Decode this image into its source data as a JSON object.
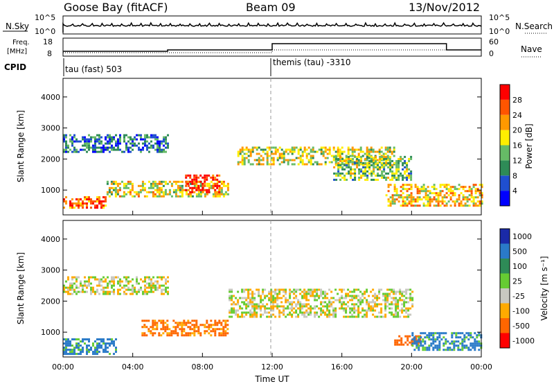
{
  "header": {
    "station": "Goose Bay (fitACF)",
    "beam": "Beam 09",
    "date": "13/Nov/2012"
  },
  "strips": {
    "nsky_label": "N.Sky",
    "nsearch_label": "N.Search",
    "nsky_ticks": [
      "10^5",
      "10^0"
    ],
    "nsky_right_ticks": [
      "10^5",
      "10^0"
    ],
    "freq_label": "Freq.",
    "freq_unit": "[MHz]",
    "freq_ticks": [
      "18",
      "8"
    ],
    "nave_label": "Nave",
    "nave_ticks": [
      "60",
      "0"
    ],
    "cpid_label": "CPID",
    "cpid_segments": [
      {
        "label": "tau (fast) 503",
        "start_hour": 0
      },
      {
        "label": "themis (tau) -3310",
        "start_hour": 12
      }
    ]
  },
  "chart_data": [
    {
      "type": "heatmap",
      "title": "",
      "xlabel": "",
      "ylabel": "Slant Range [km]",
      "xlim": [
        0,
        24
      ],
      "ylim": [
        200,
        4600
      ],
      "yticks": [
        1000,
        2000,
        3000,
        4000
      ],
      "colorbar": {
        "label": "Power [dB]",
        "ticks": [
          4,
          8,
          12,
          16,
          20,
          24,
          28
        ],
        "range": [
          0,
          32
        ],
        "colors": [
          "#0000ff",
          "#1f4fd0",
          "#2e8b57",
          "#66bb66",
          "#ffee00",
          "#ff9900",
          "#ff5500",
          "#ff0000"
        ]
      },
      "echo_bands": [
        {
          "hours": [
            0.0,
            2.5
          ],
          "range_km": [
            400,
            800
          ],
          "level": 26
        },
        {
          "hours": [
            0.0,
            6.0
          ],
          "range_km": [
            2200,
            2800
          ],
          "level": 8
        },
        {
          "hours": [
            2.5,
            9.5
          ],
          "range_km": [
            800,
            1300
          ],
          "level": 18
        },
        {
          "hours": [
            7.0,
            9.0
          ],
          "range_km": [
            900,
            1500
          ],
          "level": 28
        },
        {
          "hours": [
            10.0,
            19.0
          ],
          "range_km": [
            1800,
            2400
          ],
          "level": 17
        },
        {
          "hours": [
            15.5,
            20.0
          ],
          "range_km": [
            1300,
            2100
          ],
          "level": 14
        },
        {
          "hours": [
            18.5,
            24.0
          ],
          "range_km": [
            500,
            1200
          ],
          "level": 20
        }
      ]
    },
    {
      "type": "heatmap",
      "title": "",
      "xlabel": "Time UT",
      "ylabel": "Slant Range [km]",
      "xlim": [
        0,
        24
      ],
      "ylim": [
        200,
        4600
      ],
      "xticks": [
        "00:00",
        "04:00",
        "08:00",
        "12:00",
        "16:00",
        "20:00",
        "00:00"
      ],
      "yticks": [
        1000,
        2000,
        3000,
        4000
      ],
      "colorbar": {
        "label": "Velocity [m s⁻¹]",
        "ticks": [
          1000,
          500,
          100,
          25,
          -25,
          -100,
          -500,
          -1000
        ],
        "colors": [
          "#1a2aa8",
          "#2a7ac8",
          "#2e8b57",
          "#66cc33",
          "#c8c8c0",
          "#ffaa00",
          "#ff6600",
          "#ff0000"
        ]
      },
      "echo_bands": [
        {
          "hours": [
            0.0,
            6.0
          ],
          "range_km": [
            2200,
            2800
          ],
          "velocity": 0
        },
        {
          "hours": [
            0.0,
            3.0
          ],
          "range_km": [
            300,
            800
          ],
          "velocity": 150
        },
        {
          "hours": [
            4.5,
            9.5
          ],
          "range_km": [
            900,
            1400
          ],
          "velocity": -150
        },
        {
          "hours": [
            9.5,
            20.0
          ],
          "range_km": [
            1500,
            2400
          ],
          "velocity": 0
        },
        {
          "hours": [
            19.0,
            20.5
          ],
          "range_km": [
            600,
            900
          ],
          "velocity": -200
        },
        {
          "hours": [
            20.0,
            24.0
          ],
          "range_km": [
            400,
            1000
          ],
          "velocity": 150
        }
      ]
    }
  ]
}
